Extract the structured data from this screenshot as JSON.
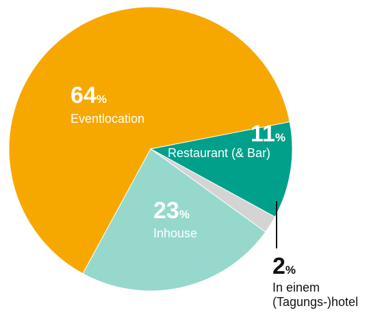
{
  "chart_data": {
    "type": "pie",
    "title": "",
    "unit": "%",
    "slices": [
      {
        "value": 11,
        "label": "Restaurant (& Bar)",
        "color": "#00A08A"
      },
      {
        "value": 2,
        "label": "In einem (Tagungs-)hotel",
        "label_lines": [
          "In einem",
          "(Tagungs-)hotel"
        ],
        "color": "#D4D4D4"
      },
      {
        "value": 23,
        "label": "Inhouse",
        "color": "#96D8CC"
      },
      {
        "value": 64,
        "label": "Eventlocation",
        "color": "#F7A800"
      }
    ]
  }
}
